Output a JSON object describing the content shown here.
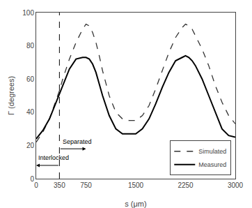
{
  "chart_data": {
    "type": "line",
    "x": [
      0,
      100,
      200,
      300,
      350,
      400,
      500,
      600,
      700,
      750,
      800,
      850,
      900,
      950,
      1000,
      1100,
      1200,
      1300,
      1400,
      1500,
      1600,
      1700,
      1800,
      1900,
      2000,
      2100,
      2200,
      2250,
      2300,
      2350,
      2400,
      2500,
      2600,
      2700,
      2800,
      2900,
      3000
    ],
    "series": [
      {
        "name": "Simulated",
        "color": "#333333",
        "line_style": "dashed",
        "values": [
          22,
          28,
          36,
          47,
          53,
          60,
          72,
          82,
          90,
          93,
          92,
          88,
          82,
          74,
          65,
          50,
          40,
          36,
          35,
          35,
          38,
          44,
          54,
          65,
          76,
          85,
          91,
          93,
          92,
          90,
          86,
          78,
          68,
          56,
          46,
          38,
          33
        ]
      },
      {
        "name": "Measured",
        "color": "#000000",
        "line_style": "solid",
        "values": [
          24,
          29,
          36,
          46,
          51,
          56,
          66,
          72,
          73,
          73,
          72,
          69,
          64,
          57,
          50,
          38,
          30,
          27,
          27,
          27,
          30,
          36,
          45,
          55,
          64,
          71,
          73,
          74,
          73,
          71,
          68,
          60,
          50,
          40,
          30,
          26,
          25
        ]
      }
    ],
    "xlabel": "s (μm)",
    "ylabel": "Γ (degrees)",
    "xlim": [
      0,
      3000
    ],
    "ylim": [
      0,
      100
    ],
    "xticks": [
      0,
      350,
      750,
      1500,
      2250,
      3000
    ],
    "yticks": [
      0,
      20,
      40,
      60,
      80,
      100
    ],
    "grid": false,
    "legend": "lower right",
    "reference_lines": [
      {
        "x": 350,
        "line_style": "dashed",
        "color": "#000000"
      }
    ],
    "annotations": [
      {
        "text": "Separated",
        "x": 380,
        "y": 19.5,
        "color": "#000000",
        "arrow": {
          "x_start": 350,
          "x_end": 750,
          "y": 18
        }
      },
      {
        "text": "Interlocked",
        "x": 10,
        "y": 9.5,
        "color": "#000000",
        "arrow": {
          "x_start": 350,
          "x_end": 0,
          "y": 8
        }
      }
    ]
  }
}
